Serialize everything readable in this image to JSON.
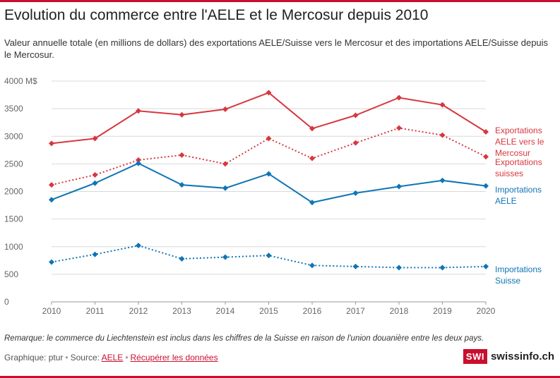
{
  "header": {
    "title": "Evolution du commerce entre l'AELE et le Mercosur depuis 2010",
    "subtitle": "Valeur annuelle totale (en millions de dollars) des exportations AELE/Suisse vers le Mercosur et des importations AELE/Suisse depuis le Mercosur."
  },
  "chart_data": {
    "type": "line",
    "x": [
      "2010",
      "2011",
      "2012",
      "2013",
      "2014",
      "2015",
      "2016",
      "2017",
      "2018",
      "2019",
      "2020"
    ],
    "ylim": [
      0,
      4000
    ],
    "yticks": [
      0,
      500,
      1000,
      1500,
      2000,
      2500,
      3000,
      3500,
      4000
    ],
    "ytick_labels": [
      "0",
      "500",
      "1000",
      "1500",
      "2000",
      "2500",
      "3000",
      "3500",
      "4000 M$"
    ],
    "grid": true,
    "series": [
      {
        "name": "Exportations AELE vers le Mercosur",
        "label_lines": [
          "Exportations",
          "AELE vers le",
          "Mercosur"
        ],
        "color": "#d7373f",
        "style": "solid",
        "values": [
          2870,
          2960,
          3460,
          3390,
          3490,
          3790,
          3140,
          3380,
          3700,
          3570,
          3080
        ]
      },
      {
        "name": "Exportations suisses",
        "label_lines": [
          "Exportations",
          "suisses"
        ],
        "color": "#d7373f",
        "style": "dotted",
        "values": [
          2120,
          2300,
          2570,
          2660,
          2500,
          2960,
          2600,
          2880,
          3150,
          3020,
          2630
        ]
      },
      {
        "name": "Importations AELE",
        "label_lines": [
          "Importations",
          "AELE"
        ],
        "color": "#0f75b4",
        "style": "solid",
        "values": [
          1850,
          2150,
          2510,
          2120,
          2060,
          2320,
          1800,
          1970,
          2090,
          2200,
          2100
        ]
      },
      {
        "name": "Importations Suisse",
        "label_lines": [
          "Importations",
          "Suisse"
        ],
        "color": "#0f75b4",
        "style": "dotted",
        "values": [
          720,
          860,
          1020,
          780,
          810,
          840,
          660,
          640,
          620,
          620,
          640
        ]
      }
    ]
  },
  "note": "Remarque: le commerce du Liechtenstein est inclus dans les chiffres de la Suisse en raison de l'union douanière entre les deux pays.",
  "footer": {
    "credit": "Graphique: ptur",
    "source_prefix": "Source:",
    "source_link": "AELE",
    "data_link": "Récupérer les données"
  },
  "logo": {
    "badge": "SWI",
    "name": "swissinfo.ch"
  }
}
